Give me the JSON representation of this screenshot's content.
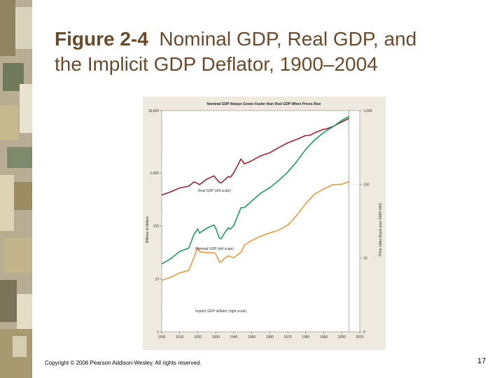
{
  "slide": {
    "title_bold": "Figure 2-4",
    "title_rest": "  Nominal GDP, Real GDP, and",
    "title_line2": "the Implicit GDP Deflator, 1900–2004",
    "copyright": "Copyright © 2006 Pearson Addison-Wesley. All rights reserved.",
    "page_number": "17"
  },
  "colors": {
    "background": "#ffffff",
    "title": "#6b4a2a",
    "chart_bg": "#efeadf",
    "real_gdp": "#9b2335",
    "nominal_gdp": "#1f9a5c",
    "deflator": "#e49a3a"
  },
  "chart_data": {
    "type": "line",
    "title": "Nominal GDP Always Grows Faster than Real GDP When Prices Rise",
    "ylabel_left": "Billions of dollars",
    "ylabel_right": "Price index (fiscal year 2000=100)",
    "yscale_left": "log",
    "ylim_left": [
      1,
      15000
    ],
    "yticks_left": [
      "15,000",
      "1,000",
      "100",
      "10",
      "1"
    ],
    "yticks_right": [
      "1,000",
      "100",
      "10",
      "0"
    ],
    "xlim": [
      1900,
      2010
    ],
    "xticks": [
      "1900",
      "1910",
      "1920",
      "1930",
      "1940",
      "1950",
      "1960",
      "1970",
      "1980",
      "1990",
      "2000",
      "2010"
    ],
    "reference_year": 2004,
    "series": [
      {
        "name": "Real GDP (left scale)",
        "x": [
          1900,
          1905,
          1910,
          1915,
          1918,
          1920,
          1921,
          1925,
          1929,
          1930,
          1932,
          1933,
          1935,
          1937,
          1938,
          1940,
          1944,
          1946,
          1950,
          1955,
          1960,
          1965,
          1970,
          1975,
          1980,
          1982,
          1985,
          1990,
          1991,
          1995,
          2000,
          2004
        ],
        "values": [
          380,
          440,
          520,
          560,
          680,
          630,
          600,
          760,
          880,
          800,
          660,
          650,
          740,
          860,
          820,
          1000,
          1830,
          1480,
          1700,
          2100,
          2400,
          3000,
          3700,
          4300,
          5100,
          5100,
          5700,
          6700,
          6700,
          7500,
          9200,
          10700
        ]
      },
      {
        "name": "Nominal GDP (left scale)",
        "x": [
          1900,
          1905,
          1910,
          1915,
          1918,
          1920,
          1921,
          1925,
          1929,
          1930,
          1932,
          1933,
          1935,
          1937,
          1938,
          1940,
          1944,
          1946,
          1950,
          1955,
          1960,
          1965,
          1970,
          1975,
          1980,
          1985,
          1990,
          1995,
          2000,
          2004
        ],
        "values": [
          19,
          24,
          33,
          38,
          70,
          88,
          73,
          90,
          104,
          91,
          59,
          57,
          74,
          92,
          86,
          101,
          220,
          222,
          294,
          415,
          526,
          720,
          1040,
          1640,
          2790,
          4220,
          5800,
          7400,
          9800,
          11700
        ]
      },
      {
        "name": "Implicit GDP deflator (right scale)",
        "x": [
          1900,
          1905,
          1910,
          1915,
          1918,
          1920,
          1921,
          1925,
          1929,
          1930,
          1932,
          1933,
          1935,
          1937,
          1938,
          1940,
          1944,
          1946,
          1950,
          1955,
          1960,
          1965,
          1970,
          1975,
          1980,
          1985,
          1990,
          1995,
          2000,
          2004
        ],
        "values": [
          5,
          5.5,
          6.3,
          6.8,
          10.3,
          14,
          12.2,
          11.8,
          11.8,
          11.4,
          8.9,
          8.8,
          10,
          10.7,
          10.5,
          10.1,
          12,
          15,
          17.3,
          19.8,
          21.9,
          24,
          28,
          38,
          55,
          74,
          86.6,
          98.7,
          100,
          109
        ]
      }
    ],
    "annotations": {
      "real": "Real GDP (left scale)",
      "nominal": "Nominal GDP (left scale)",
      "deflator": "Implicit GDP deflator (right scale)"
    }
  }
}
